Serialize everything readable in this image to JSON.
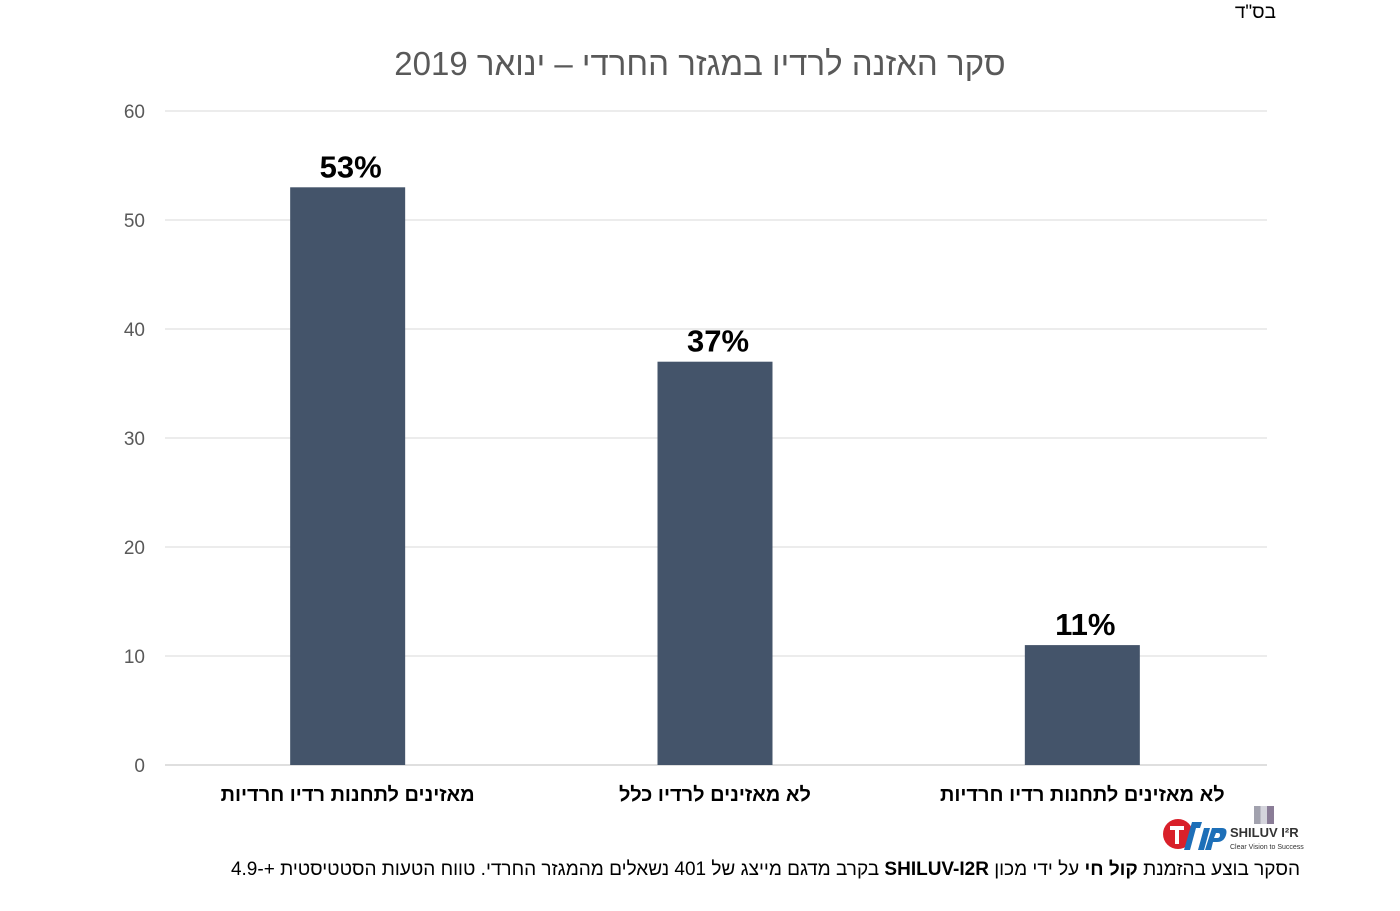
{
  "header": {
    "bsd": "בס\"ד"
  },
  "chart_data": {
    "type": "bar",
    "title": "סקר האזנה לרדיו במגזר החרדי – ינואר 2019",
    "categories": [
      "מאזינים לתחנות רדיו חרדיות",
      "לא מאזינים לרדיו כלל",
      "לא מאזינים לתחנות רדיו חרדיות"
    ],
    "values": [
      53,
      37,
      11
    ],
    "data_labels": [
      "53%",
      "37%",
      "11%"
    ],
    "ylim": [
      0,
      60
    ],
    "yticks": [
      0,
      10,
      20,
      30,
      40,
      50,
      60
    ],
    "xlabel": "",
    "ylabel": "",
    "grid": true,
    "bar_color": "#44546a",
    "legend": "none"
  },
  "logos": {
    "kol_chai": "קול חי",
    "shiluv_name": "SHILUV I²R",
    "shiluv_tagline": "Clear Vision to Success"
  },
  "footer": {
    "part1": "הסקר בוצע בהזמנת ",
    "client": "קול חי",
    "part2": " על ידי מכון ",
    "institute": "SHILUV-I2R",
    "part3": " בקרב מדגם מייצג של 401 נשאלים מהמגזר החרדי. טווח הטעות הסטטיסטית +-4.9"
  }
}
